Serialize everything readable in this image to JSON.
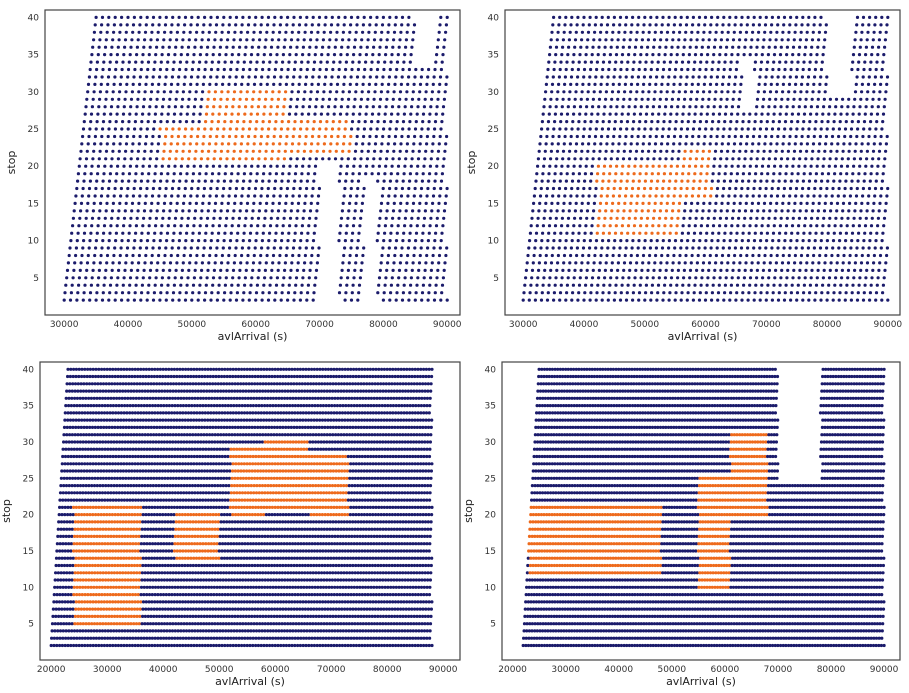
{
  "colors": {
    "blue": "#1b1b6b",
    "orange": "#ee6a1c",
    "frame": "#444444",
    "background": "#ffffff"
  },
  "chart_data": [
    {
      "type": "scatter",
      "title": "",
      "xlabel": "avlArrival (s)",
      "ylabel": "stop",
      "xlim": [
        27000,
        92000
      ],
      "ylim": [
        0,
        41
      ],
      "xticks": [
        30000,
        40000,
        50000,
        60000,
        70000,
        80000,
        90000
      ],
      "yticks": [
        5,
        10,
        15,
        20,
        25,
        30,
        35,
        40
      ],
      "grid": false,
      "legend": "none",
      "series": [
        {
          "color": "#1b1b6b",
          "regions": [
            {
              "x": [
                30000,
                90000
              ],
              "y": [
                2,
                40
              ],
              "x_step": 1000,
              "y_step": 1,
              "slant": 5000
            }
          ],
          "gaps": [
            {
              "x": [
                70000,
                73000
              ],
              "y": [
                2,
                20
              ]
            },
            {
              "x": [
                77000,
                79000
              ],
              "y": [
                2,
                18
              ]
            },
            {
              "x": [
                85000,
                88000
              ],
              "y": [
                34,
                40
              ]
            }
          ]
        },
        {
          "color": "#ee6a1c",
          "regions": [
            {
              "x": [
                52000,
                65000
              ],
              "y": [
                21,
                30
              ]
            },
            {
              "x": [
                45000,
                52000
              ],
              "y": [
                21,
                25
              ]
            },
            {
              "x": [
                65000,
                75000
              ],
              "y": [
                22,
                26
              ]
            }
          ]
        }
      ]
    },
    {
      "type": "scatter",
      "title": "",
      "xlabel": "avlArrival (s)",
      "ylabel": "stop",
      "xlim": [
        27000,
        92000
      ],
      "ylim": [
        0,
        41
      ],
      "xticks": [
        30000,
        40000,
        50000,
        60000,
        70000,
        80000,
        90000
      ],
      "yticks": [
        5,
        10,
        15,
        20,
        25,
        30,
        35,
        40
      ],
      "grid": false,
      "legend": "none",
      "series": [
        {
          "color": "#1b1b6b",
          "regions": [
            {
              "x": [
                30000,
                90000
              ],
              "y": [
                2,
                40
              ],
              "x_step": 1000,
              "y_step": 1,
              "slant": 5000
            }
          ],
          "gaps": [
            {
              "x": [
                66000,
                68000
              ],
              "y": [
                28,
                34
              ]
            },
            {
              "x": [
                80000,
                84000
              ],
              "y": [
                30,
                40
              ]
            }
          ]
        },
        {
          "color": "#ee6a1c",
          "regions": [
            {
              "x": [
                42000,
                56000
              ],
              "y": [
                11,
                20
              ]
            },
            {
              "x": [
                56000,
                61000
              ],
              "y": [
                16,
                22
              ]
            }
          ]
        }
      ]
    },
    {
      "type": "scatter",
      "title": "",
      "xlabel": "avlArrival (s)",
      "ylabel": "stop",
      "xlim": [
        18000,
        93000
      ],
      "ylim": [
        0,
        41
      ],
      "xticks": [
        20000,
        30000,
        40000,
        50000,
        60000,
        70000,
        80000,
        90000
      ],
      "yticks": [
        5,
        10,
        15,
        20,
        25,
        30,
        35,
        40
      ],
      "grid": false,
      "legend": "none",
      "series": [
        {
          "color": "#1b1b6b",
          "regions": [
            {
              "x": [
                20000,
                88000
              ],
              "y": [
                2,
                40
              ],
              "x_step": 500,
              "y_step": 1,
              "slant": 3000
            }
          ],
          "gaps": []
        },
        {
          "color": "#ee6a1c",
          "regions": [
            {
              "x": [
                24000,
                36000
              ],
              "y": [
                5,
                21
              ]
            },
            {
              "x": [
                52000,
                58000
              ],
              "y": [
                20,
                29
              ]
            },
            {
              "x": [
                58000,
                66000
              ],
              "y": [
                21,
                30
              ]
            },
            {
              "x": [
                66000,
                73000
              ],
              "y": [
                20,
                28
              ]
            },
            {
              "x": [
                42000,
                50000
              ],
              "y": [
                14,
                20
              ]
            }
          ]
        }
      ]
    },
    {
      "type": "scatter",
      "title": "",
      "xlabel": "avlArrival (s)",
      "ylabel": "stop",
      "xlim": [
        18000,
        93000
      ],
      "ylim": [
        0,
        41
      ],
      "xticks": [
        20000,
        30000,
        40000,
        50000,
        60000,
        70000,
        80000,
        90000
      ],
      "yticks": [
        5,
        10,
        15,
        20,
        25,
        30,
        35,
        40
      ],
      "grid": false,
      "legend": "none",
      "series": [
        {
          "color": "#1b1b6b",
          "regions": [
            {
              "x": [
                22000,
                90000
              ],
              "y": [
                2,
                40
              ],
              "x_step": 500,
              "y_step": 1,
              "slant": 3000
            }
          ],
          "gaps": [
            {
              "x": [
                70000,
                78000
              ],
              "y": [
                25,
                40
              ]
            }
          ]
        },
        {
          "color": "#ee6a1c",
          "regions": [
            {
              "x": [
                23000,
                48000
              ],
              "y": [
                12,
                21
              ]
            },
            {
              "x": [
                55000,
                61000
              ],
              "y": [
                10,
                25
              ]
            },
            {
              "x": [
                61000,
                68000
              ],
              "y": [
                20,
                31
              ]
            }
          ]
        }
      ]
    }
  ]
}
